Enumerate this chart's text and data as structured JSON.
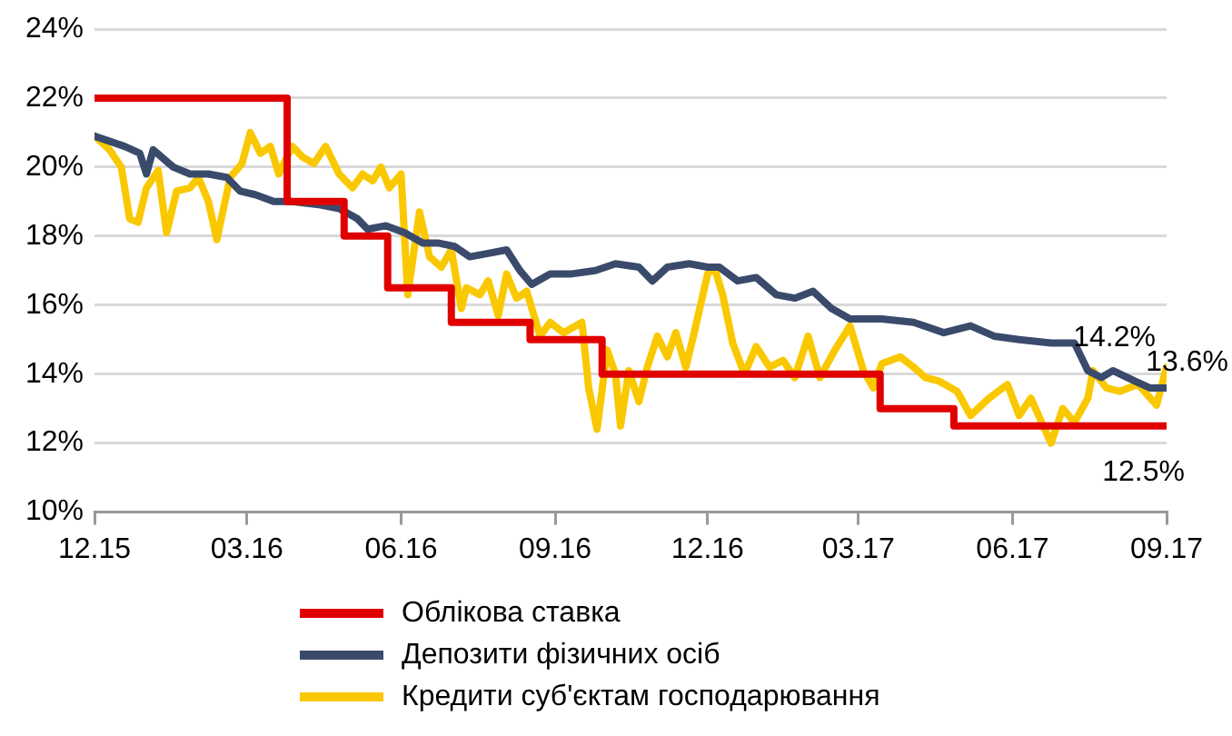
{
  "chart_data": {
    "type": "line",
    "xlim": [
      "2015-12-01",
      "2017-09-01"
    ],
    "xticks": [
      {
        "value": "2015-12-01",
        "label": "12.15"
      },
      {
        "value": "2016-03-01",
        "label": "03.16"
      },
      {
        "value": "2016-06-01",
        "label": "06.16"
      },
      {
        "value": "2016-09-01",
        "label": "09.16"
      },
      {
        "value": "2016-12-01",
        "label": "12.16"
      },
      {
        "value": "2017-03-01",
        "label": "03.17"
      },
      {
        "value": "2017-06-01",
        "label": "06.17"
      },
      {
        "value": "2017-09-01",
        "label": "09.17"
      }
    ],
    "ylim": [
      10,
      24
    ],
    "yticks": [
      {
        "value": 10,
        "label": "10%"
      },
      {
        "value": 12,
        "label": "12%"
      },
      {
        "value": 14,
        "label": "14%"
      },
      {
        "value": 16,
        "label": "16%"
      },
      {
        "value": 18,
        "label": "18%"
      },
      {
        "value": 20,
        "label": "20%"
      },
      {
        "value": 22,
        "label": "22%"
      },
      {
        "value": 24,
        "label": "24%"
      }
    ],
    "grid": "y",
    "legend": "bottom",
    "line_style": "solid",
    "marker": "none",
    "annotations": [
      {
        "text": "14.2%",
        "x": "2017-09-01",
        "y": 14.2
      },
      {
        "text": "13.6%",
        "x": "2017-09-01",
        "y": 13.6
      },
      {
        "text": "12.5%",
        "x": "2017-09-01",
        "y": 12.5
      }
    ],
    "series": [
      {
        "name": "Облікова ставка",
        "type": "step",
        "color": "#e00000",
        "x": [
          "2015-12-01",
          "2016-03-25",
          "2016-04-28",
          "2016-05-24",
          "2016-07-01",
          "2016-08-17",
          "2016-09-29",
          "2017-03-14",
          "2017-04-27",
          "2017-09-01"
        ],
        "values": [
          22,
          19,
          18,
          16.5,
          15.5,
          15,
          14,
          13,
          12.5,
          12.5
        ]
      },
      {
        "name": "Депозити фізичних осіб",
        "color": "#3a4a6b",
        "x": [
          "2015-12-01",
          "2015-12-19",
          "2015-12-28",
          "2016-01-01",
          "2016-01-05",
          "2016-01-17",
          "2016-01-27",
          "2016-02-07",
          "2016-02-18",
          "2016-02-26",
          "2016-03-06",
          "2016-03-17",
          "2016-03-28",
          "2016-04-14",
          "2016-04-25",
          "2016-05-06",
          "2016-05-12",
          "2016-05-23",
          "2016-06-03",
          "2016-06-14",
          "2016-06-23",
          "2016-07-03",
          "2016-07-12",
          "2016-07-23",
          "2016-08-03",
          "2016-08-11",
          "2016-08-18",
          "2016-08-29",
          "2016-09-10",
          "2016-09-25",
          "2016-10-07",
          "2016-10-21",
          "2016-10-29",
          "2016-11-07",
          "2016-11-20",
          "2016-12-01",
          "2016-12-08",
          "2016-12-19",
          "2016-12-30",
          "2017-01-11",
          "2017-01-22",
          "2017-02-02",
          "2017-02-13",
          "2017-02-24",
          "2017-03-15",
          "2017-04-03",
          "2017-04-21",
          "2017-05-07",
          "2017-05-21",
          "2017-06-05",
          "2017-06-24",
          "2017-07-08",
          "2017-07-16",
          "2017-07-24",
          "2017-07-31",
          "2017-08-13",
          "2017-08-22",
          "2017-09-01"
        ],
        "values": [
          20.9,
          20.6,
          20.4,
          19.8,
          20.5,
          20.0,
          19.8,
          19.8,
          19.7,
          19.3,
          19.2,
          19.0,
          19.0,
          18.9,
          18.8,
          18.5,
          18.2,
          18.3,
          18.1,
          17.8,
          17.8,
          17.7,
          17.4,
          17.5,
          17.6,
          17.0,
          16.6,
          16.9,
          16.9,
          17.0,
          17.2,
          17.1,
          16.7,
          17.1,
          17.2,
          17.1,
          17.1,
          16.7,
          16.8,
          16.3,
          16.2,
          16.4,
          15.9,
          15.6,
          15.6,
          15.5,
          15.2,
          15.4,
          15.1,
          15.0,
          14.9,
          14.9,
          14.1,
          13.9,
          14.1,
          13.8,
          13.6,
          13.6
        ]
      },
      {
        "name": "Кредити суб'єктам господарювання",
        "color": "#fac800",
        "x": [
          "2015-12-01",
          "2015-12-10",
          "2015-12-17",
          "2015-12-22",
          "2015-12-27",
          "2016-01-01",
          "2016-01-08",
          "2016-01-13",
          "2016-01-19",
          "2016-01-27",
          "2016-02-01",
          "2016-02-07",
          "2016-02-12",
          "2016-02-20",
          "2016-02-27",
          "2016-03-03",
          "2016-03-09",
          "2016-03-15",
          "2016-03-20",
          "2016-03-28",
          "2016-04-03",
          "2016-04-10",
          "2016-04-17",
          "2016-04-25",
          "2016-05-03",
          "2016-05-09",
          "2016-05-15",
          "2016-05-20",
          "2016-05-25",
          "2016-06-01",
          "2016-06-05",
          "2016-06-12",
          "2016-06-18",
          "2016-06-25",
          "2016-07-01",
          "2016-07-07",
          "2016-07-10",
          "2016-07-18",
          "2016-07-23",
          "2016-07-29",
          "2016-08-03",
          "2016-08-09",
          "2016-08-15",
          "2016-08-23",
          "2016-08-29",
          "2016-09-06",
          "2016-09-17",
          "2016-09-21",
          "2016-09-26",
          "2016-10-02",
          "2016-10-07",
          "2016-10-10",
          "2016-10-15",
          "2016-10-21",
          "2016-10-26",
          "2016-11-01",
          "2016-11-07",
          "2016-11-12",
          "2016-11-18",
          "2016-11-23",
          "2016-12-01",
          "2016-12-05",
          "2016-12-10",
          "2016-12-16",
          "2016-12-23",
          "2016-12-30",
          "2017-01-07",
          "2017-01-15",
          "2017-01-22",
          "2017-01-30",
          "2017-02-06",
          "2017-02-15",
          "2017-02-24",
          "2017-03-04",
          "2017-03-10",
          "2017-03-15",
          "2017-03-26",
          "2017-04-03",
          "2017-04-10",
          "2017-04-18",
          "2017-04-29",
          "2017-05-07",
          "2017-05-18",
          "2017-05-29",
          "2017-06-05",
          "2017-06-12",
          "2017-06-24",
          "2017-07-01",
          "2017-07-08",
          "2017-07-16",
          "2017-07-19",
          "2017-07-27",
          "2017-08-04",
          "2017-08-15",
          "2017-08-26",
          "2017-09-01"
        ],
        "values": [
          20.9,
          20.5,
          20.0,
          18.5,
          18.4,
          19.4,
          19.9,
          18.1,
          19.3,
          19.4,
          19.7,
          19.0,
          17.9,
          19.7,
          20.1,
          21.0,
          20.4,
          20.6,
          19.8,
          20.6,
          20.3,
          20.1,
          20.6,
          19.8,
          19.4,
          19.8,
          19.6,
          20.0,
          19.4,
          19.8,
          16.3,
          18.7,
          17.4,
          17.1,
          17.6,
          15.9,
          16.5,
          16.3,
          16.7,
          15.7,
          16.9,
          16.2,
          16.4,
          15.1,
          15.5,
          15.2,
          15.5,
          13.6,
          12.4,
          14.7,
          14.0,
          12.5,
          14.1,
          13.2,
          14.2,
          15.1,
          14.5,
          15.2,
          14.2,
          15.2,
          16.9,
          17.1,
          16.3,
          14.9,
          14.0,
          14.8,
          14.2,
          14.4,
          13.9,
          15.1,
          13.9,
          14.7,
          15.4,
          14.1,
          13.6,
          14.3,
          14.5,
          14.2,
          13.9,
          13.8,
          13.5,
          12.8,
          13.3,
          13.7,
          12.8,
          13.3,
          12.0,
          13.0,
          12.6,
          13.3,
          14.1,
          13.6,
          13.5,
          13.7,
          13.1,
          14.2
        ]
      }
    ]
  }
}
